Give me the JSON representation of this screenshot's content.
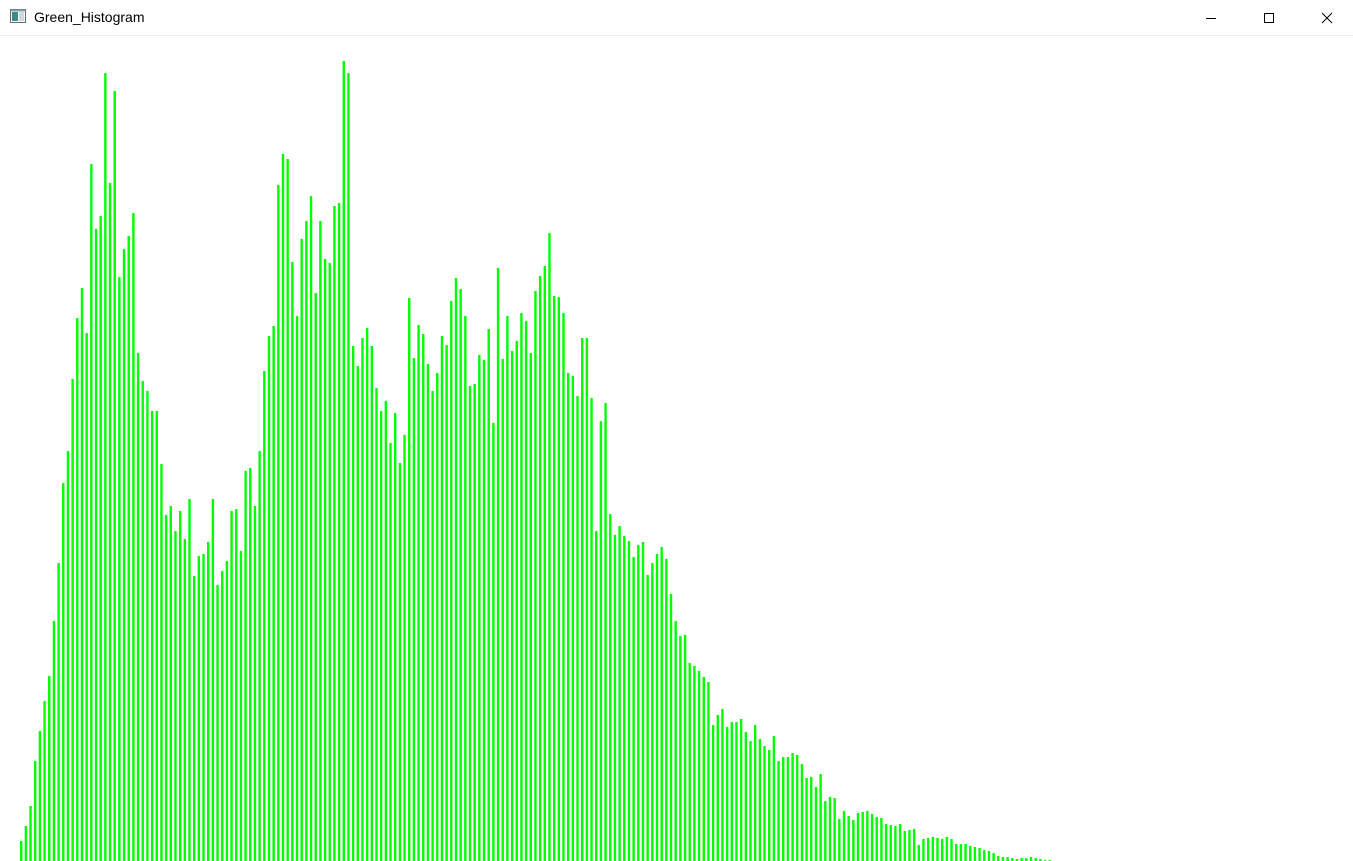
{
  "window": {
    "title": "Green_Histogram",
    "app_icon": "window-app-icon",
    "controls": [
      {
        "name": "minimize-button",
        "icon": "minimize-icon"
      },
      {
        "name": "maximize-button",
        "icon": "maximize-icon"
      },
      {
        "name": "close-button",
        "icon": "close-icon"
      }
    ]
  },
  "colors": {
    "bar": "#00ff00",
    "background": "#ffffff"
  },
  "chart_data": {
    "type": "bar",
    "title": "",
    "xlabel": "",
    "ylabel": "",
    "x_range": [
      0,
      255
    ],
    "ylim": [
      0,
      825
    ],
    "grid": false,
    "legend": "none",
    "series": [
      {
        "values": [
          20,
          35,
          55,
          100,
          130,
          160,
          185,
          240,
          298,
          378,
          410,
          482,
          543,
          573,
          528,
          697,
          632,
          645,
          788,
          678,
          770,
          584,
          612,
          625,
          648,
          508,
          480,
          470,
          450,
          450,
          397,
          346,
          355,
          330,
          350,
          322,
          362,
          285,
          305,
          307,
          319,
          362,
          276,
          290,
          300,
          350,
          352,
          310,
          390,
          393,
          355,
          410,
          490,
          525,
          535,
          676,
          707,
          702,
          599,
          545,
          622,
          640,
          665,
          568,
          640,
          602,
          598,
          655,
          658,
          800,
          788,
          515,
          495,
          523,
          533,
          515,
          473,
          450,
          460,
          418,
          448,
          398,
          426,
          563,
          503,
          536,
          527,
          497,
          470,
          488,
          525,
          516,
          560,
          583,
          572,
          545,
          475,
          477,
          506,
          501,
          532,
          438,
          593,
          502,
          545,
          510,
          520,
          548,
          540,
          508,
          570,
          585,
          595,
          628,
          565,
          564,
          548,
          488,
          485,
          465,
          523,
          523,
          463,
          330,
          440,
          458,
          347,
          326,
          335,
          325,
          320,
          304,
          316,
          319,
          286,
          298,
          307,
          314,
          302,
          267,
          240,
          225,
          226,
          198,
          195,
          190,
          184,
          179,
          136,
          146,
          152,
          134,
          139,
          139,
          142,
          129,
          120,
          136,
          122,
          115,
          111,
          125,
          100,
          104,
          104,
          108,
          106,
          97,
          83,
          84,
          74,
          87,
          60,
          64,
          63,
          42,
          50,
          45,
          41,
          48,
          49,
          50,
          47,
          44,
          43,
          37,
          36,
          35,
          37,
          30,
          31,
          32,
          16,
          22,
          23,
          24,
          23,
          22,
          24,
          22,
          17,
          17,
          17,
          15,
          14,
          13,
          11,
          10,
          8,
          5,
          4,
          4,
          3,
          2,
          3,
          3,
          4,
          3,
          2,
          1,
          1
        ]
      }
    ]
  }
}
